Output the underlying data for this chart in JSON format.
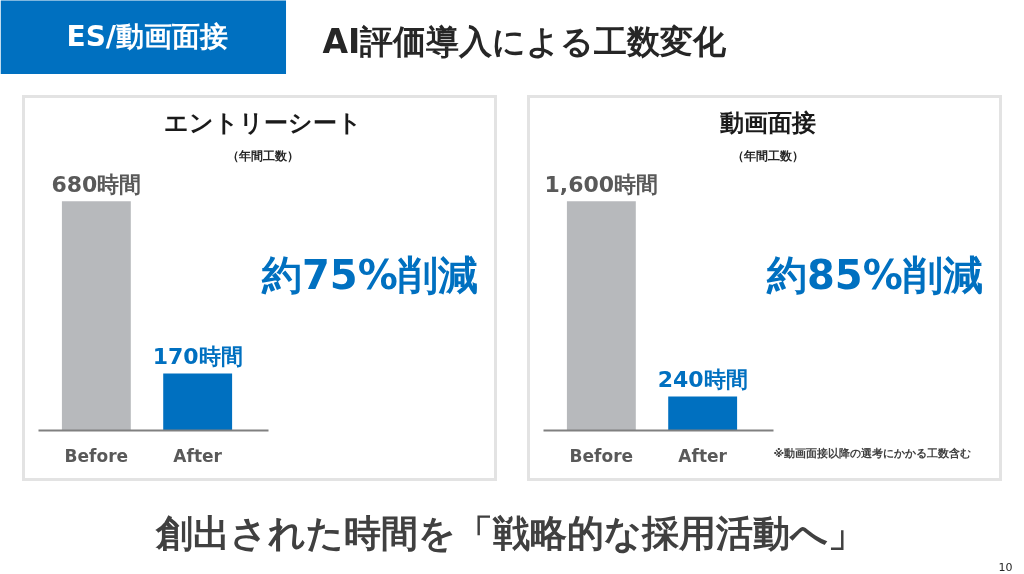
{
  "chart_data": [
    {
      "type": "other",
      "title": "AI評価導入による工数変化",
      "annotations": [
        "ES/動画面接"
      ]
    },
    {
      "type": "bar",
      "title": "エントリーシート",
      "subtitle": "（年間工数）",
      "categories": [
        "Before",
        "After"
      ],
      "values": [
        680,
        170
      ],
      "colors": [
        "#b7b9bc",
        "#0070c0"
      ],
      "value_labels": [
        "680時間",
        "170時間"
      ],
      "annotations": [
        "約75%削減"
      ],
      "tick_labels": "x"
    },
    {
      "type": "bar",
      "title": "動画面接",
      "subtitle": "（年間工数）",
      "categories": [
        "Before",
        "After"
      ],
      "values": [
        1600,
        240
      ],
      "colors": [
        "#b7b9bc",
        "#0070c0"
      ],
      "value_labels": [
        "1,600時間",
        "240時間"
      ],
      "annotations": [
        "約85%削減",
        "※動画面接以降の選考にかかる工数含む"
      ],
      "tick_labels": "x"
    },
    {
      "type": "other",
      "title": "創出された時間を「戦略的な採用活動へ」",
      "annotations": [
        "10"
      ]
    }
  ]
}
